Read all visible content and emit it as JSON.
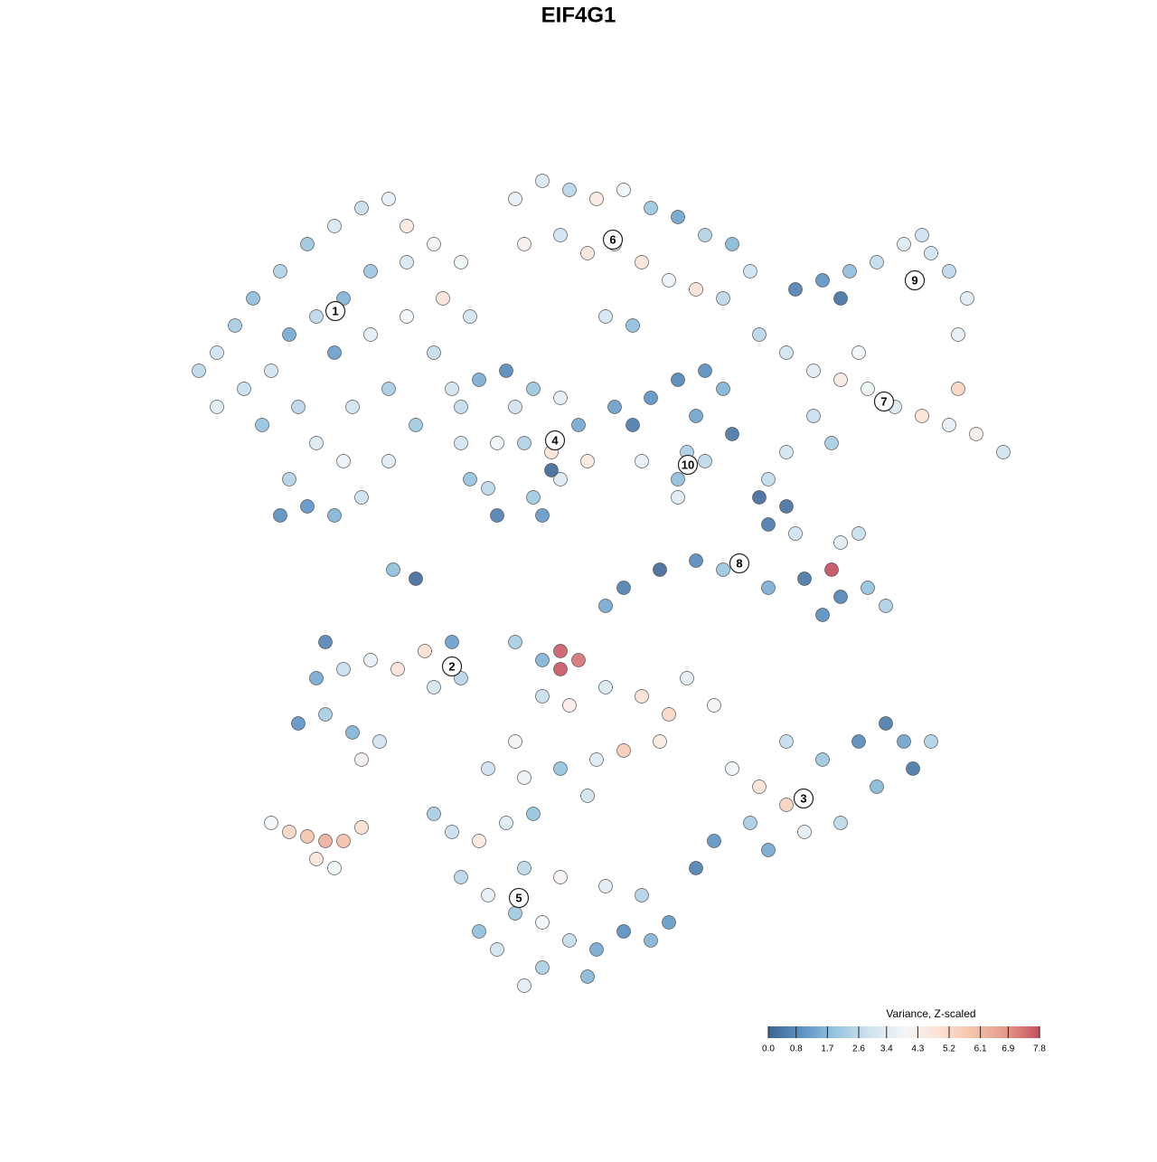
{
  "chart_data": {
    "type": "scatter",
    "title": "EIF4G1",
    "xlim": [
      0,
      1000
    ],
    "ylim": [
      0,
      1000
    ],
    "x": [
      70,
      90,
      110,
      130,
      160,
      190,
      220,
      250,
      280,
      300,
      330,
      360,
      300,
      260,
      230,
      200,
      170,
      150,
      120,
      90,
      140,
      180,
      220,
      260,
      300,
      340,
      370,
      330,
      280,
      240,
      200,
      170,
      190,
      220,
      250,
      280,
      310,
      350,
      230,
      160,
      420,
      450,
      480,
      510,
      540,
      570,
      600,
      630,
      660,
      680,
      430,
      470,
      500,
      530,
      560,
      590,
      620,
      650,
      550,
      520,
      360,
      380,
      410,
      440,
      470,
      490,
      500,
      470,
      440,
      400,
      370,
      360,
      400,
      430,
      460,
      420,
      390,
      450,
      530,
      550,
      570,
      600,
      630,
      650,
      620,
      610,
      600,
      630,
      660,
      560,
      730,
      760,
      790,
      820,
      850,
      880,
      900,
      920,
      910,
      860,
      780,
      870,
      690,
      720,
      750,
      780,
      810,
      840,
      870,
      900,
      930,
      960,
      750,
      720,
      770,
      700,
      800,
      910,
      690,
      700,
      720,
      620,
      580,
      540,
      520,
      650,
      700,
      740,
      780,
      810,
      830,
      770,
      760,
      730,
      780,
      800,
      180,
      210,
      240,
      270,
      200,
      230,
      260,
      290,
      320,
      350,
      330,
      360,
      210,
      250,
      150,
      170,
      190,
      210,
      230,
      200,
      220,
      250,
      420,
      450,
      470,
      490,
      470,
      450,
      480,
      520,
      560,
      590,
      610,
      640,
      580,
      540,
      510,
      420,
      390,
      430,
      470,
      500,
      660,
      690,
      720,
      680,
      640,
      620,
      700,
      740,
      760,
      800,
      830,
      850,
      860,
      820,
      780,
      740,
      880,
      720,
      330,
      350,
      380,
      410,
      440,
      360,
      390,
      420,
      450,
      480,
      510,
      540,
      570,
      590,
      560,
      520,
      470,
      430,
      400,
      450,
      500,
      430,
      380,
      310,
      285,
      460,
      600
    ],
    "y": [
      740,
      760,
      790,
      820,
      850,
      880,
      900,
      920,
      930,
      900,
      880,
      860,
      860,
      850,
      820,
      800,
      780,
      740,
      720,
      700,
      680,
      700,
      760,
      780,
      800,
      820,
      800,
      760,
      720,
      700,
      660,
      620,
      590,
      580,
      600,
      640,
      680,
      720,
      640,
      580,
      930,
      950,
      940,
      930,
      940,
      920,
      910,
      890,
      880,
      850,
      880,
      890,
      870,
      880,
      860,
      840,
      830,
      820,
      790,
      800,
      700,
      730,
      740,
      720,
      710,
      680,
      640,
      620,
      600,
      580,
      620,
      660,
      660,
      660,
      650,
      700,
      610,
      580,
      700,
      680,
      710,
      730,
      740,
      720,
      690,
      650,
      620,
      640,
      670,
      640,
      830,
      840,
      850,
      860,
      880,
      870,
      850,
      820,
      780,
      840,
      820,
      890,
      780,
      760,
      740,
      730,
      720,
      700,
      690,
      680,
      670,
      650,
      690,
      650,
      660,
      620,
      760,
      720,
      600,
      570,
      590,
      530,
      520,
      500,
      480,
      520,
      500,
      510,
      490,
      500,
      480,
      520,
      470,
      560,
      550,
      560,
      350,
      360,
      340,
      330,
      400,
      410,
      420,
      410,
      430,
      440,
      390,
      400,
      440,
      310,
      240,
      230,
      225,
      220,
      220,
      200,
      190,
      235,
      440,
      420,
      430,
      420,
      410,
      380,
      370,
      390,
      380,
      360,
      400,
      370,
      330,
      320,
      310,
      330,
      300,
      290,
      300,
      270,
      300,
      280,
      260,
      240,
      220,
      190,
      210,
      270,
      310,
      330,
      350,
      330,
      300,
      280,
      240,
      230,
      330,
      330,
      250,
      230,
      220,
      240,
      250,
      180,
      160,
      140,
      130,
      110,
      100,
      120,
      110,
      130,
      160,
      170,
      180,
      190,
      100,
      80,
      70,
      60,
      120,
      510,
      520,
      630,
      600
    ],
    "values": [
      2.6,
      3.0,
      2.2,
      1.8,
      2.4,
      2.0,
      3.2,
      2.8,
      3.6,
      4.6,
      4.0,
      3.8,
      3.2,
      2.0,
      1.6,
      2.6,
      1.4,
      3.0,
      2.8,
      3.4,
      1.9,
      2.5,
      1.2,
      3.5,
      3.9,
      4.8,
      3.1,
      2.7,
      2.2,
      3.0,
      3.3,
      2.4,
      1.0,
      1.6,
      2.9,
      3.4,
      2.1,
      3.0,
      3.7,
      0.9,
      3.6,
      3.2,
      2.5,
      4.5,
      3.8,
      2.0,
      1.3,
      2.4,
      1.7,
      2.9,
      4.2,
      3.0,
      4.7,
      3.4,
      4.8,
      3.7,
      4.9,
      2.6,
      1.8,
      3.1,
      2.7,
      1.5,
      0.8,
      2.0,
      3.5,
      1.4,
      4.6,
      3.3,
      2.1,
      0.6,
      1.9,
      3.1,
      3.8,
      2.4,
      4.9,
      3.0,
      2.6,
      1.1,
      1.2,
      0.5,
      1.0,
      0.7,
      0.9,
      1.6,
      1.3,
      2.3,
      1.8,
      2.6,
      0.4,
      3.6,
      0.6,
      1.0,
      1.8,
      2.7,
      3.3,
      3.0,
      2.6,
      3.4,
      3.6,
      3.9,
      0.3,
      2.9,
      2.5,
      3.0,
      3.4,
      4.5,
      3.8,
      3.2,
      4.9,
      3.6,
      4.2,
      3.0,
      2.8,
      3.1,
      2.2,
      2.7,
      3.9,
      5.3,
      0.2,
      0.5,
      0.3,
      0.8,
      0.1,
      0.6,
      1.4,
      2.0,
      1.5,
      0.4,
      0.7,
      1.9,
      2.3,
      7.8,
      0.9,
      3.0,
      3.4,
      2.8,
      1.0,
      2.2,
      1.6,
      3.0,
      1.4,
      2.8,
      3.6,
      4.8,
      5.0,
      1.2,
      3.1,
      2.5,
      0.7,
      4.2,
      3.9,
      5.2,
      5.8,
      6.3,
      5.9,
      4.7,
      3.8,
      5.0,
      2.2,
      1.6,
      7.6,
      7.3,
      7.7,
      2.8,
      4.4,
      3.2,
      4.9,
      5.2,
      3.5,
      4.0,
      4.6,
      5.6,
      3.3,
      4.0,
      2.9,
      3.7,
      1.9,
      3.0,
      3.8,
      4.9,
      5.4,
      2.2,
      1.0,
      0.6,
      1.4,
      3.1,
      2.0,
      0.8,
      0.5,
      1.3,
      0.4,
      1.7,
      2.6,
      3.5,
      2.4,
      2.7,
      2.2,
      2.8,
      4.6,
      3.3,
      1.9,
      2.5,
      3.6,
      2.1,
      3.9,
      2.7,
      1.4,
      0.9,
      1.6,
      1.1,
      2.4,
      3.4,
      4.1,
      2.6,
      3.0,
      2.3,
      1.7,
      3.5,
      1.8,
      0.2,
      1.8,
      0.1,
      3.4
    ],
    "clusters": [
      {
        "label": "1",
        "x": 221,
        "y": 806
      },
      {
        "label": "6",
        "x": 528,
        "y": 885
      },
      {
        "label": "9",
        "x": 862,
        "y": 840
      },
      {
        "label": "7",
        "x": 828,
        "y": 706
      },
      {
        "label": "4",
        "x": 464,
        "y": 663
      },
      {
        "label": "10",
        "x": 611,
        "y": 636
      },
      {
        "label": "8",
        "x": 668,
        "y": 527
      },
      {
        "label": "2",
        "x": 350,
        "y": 413
      },
      {
        "label": "3",
        "x": 739,
        "y": 267
      },
      {
        "label": "5",
        "x": 424,
        "y": 157
      }
    ],
    "colorbar": {
      "title": "Variance, Z-scaled",
      "ticks": [
        {
          "value": 0,
          "label": "0.0"
        },
        0.8,
        1.7,
        2.6,
        3.4,
        4.3,
        5.2,
        6.1,
        6.9,
        7.8
      ],
      "colors": [
        "#3f6594",
        "#5d93c4",
        "#99c6df",
        "#cfe3ef",
        "#f3f6f8",
        "#fbe3d6",
        "#f4c3ab",
        "#e49a8a",
        "#c64f5e"
      ]
    }
  }
}
